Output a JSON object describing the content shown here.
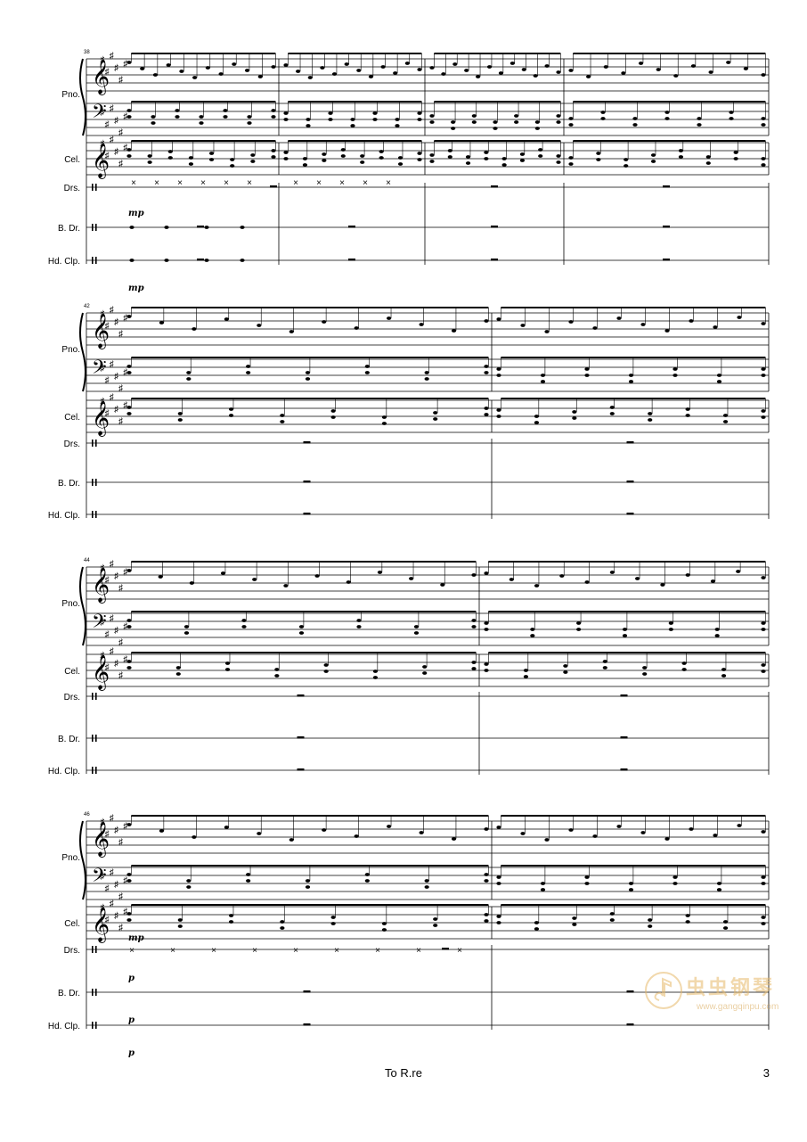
{
  "systems": [
    {
      "measure_start": "38",
      "instruments": [
        "Pno.",
        "Cel.",
        "Drs.",
        "B. Dr.",
        "Hd. Clp."
      ],
      "dynamics": [
        "mp",
        "mp"
      ]
    },
    {
      "measure_start": "42",
      "instruments": [
        "Pno.",
        "Cel.",
        "Drs.",
        "B. Dr.",
        "Hd. Clp."
      ],
      "dynamics": []
    },
    {
      "measure_start": "44",
      "instruments": [
        "Pno.",
        "Cel.",
        "Drs.",
        "B. Dr.",
        "Hd. Clp."
      ],
      "dynamics": []
    },
    {
      "measure_start": "46",
      "instruments": [
        "Pno.",
        "Cel.",
        "Drs.",
        "B. Dr.",
        "Hd. Clp."
      ],
      "dynamics": [
        "mp",
        "p",
        "p",
        "p"
      ]
    }
  ],
  "footer": {
    "title": "To R.re",
    "page_number": "3"
  },
  "watermark": {
    "title": "虫虫钢琴",
    "url": "www.gangqinpu.com",
    "icon": "music-note-logo-icon"
  }
}
